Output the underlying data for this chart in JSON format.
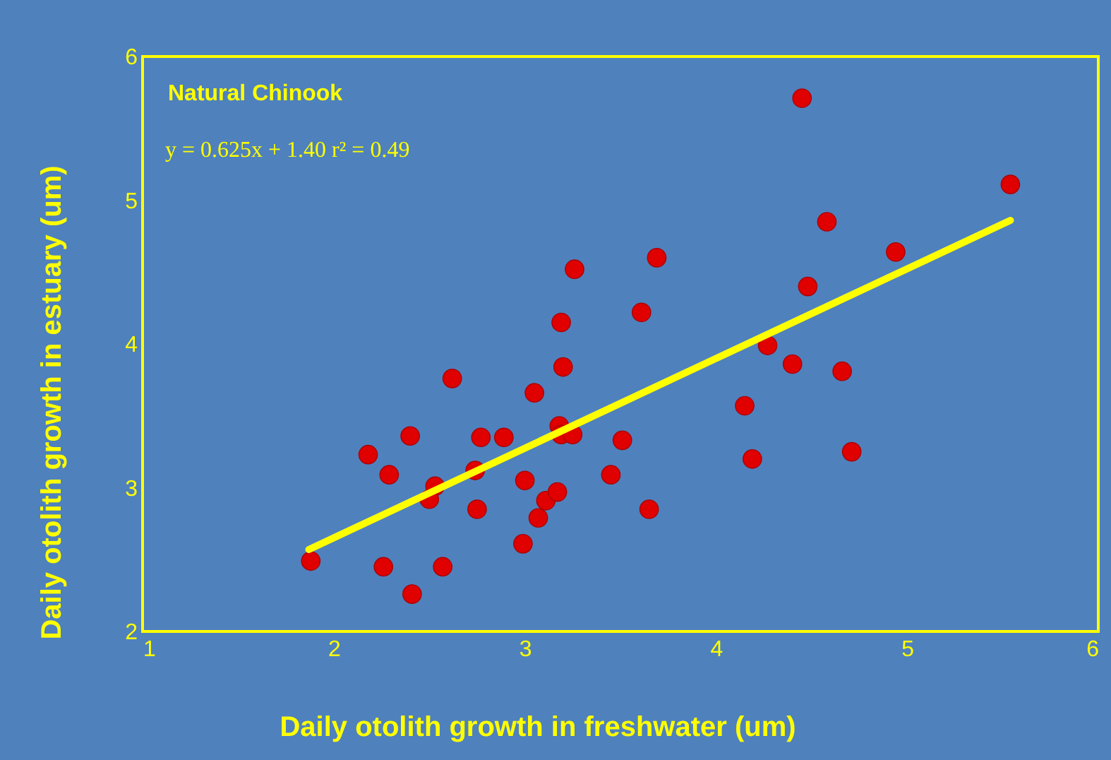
{
  "chart_data": {
    "type": "scatter",
    "title": "Natural Chinook",
    "xlabel": "Daily otolith growth in freshwater (um)",
    "ylabel": "Daily otolith growth in estuary (um)",
    "annotations": [
      "y = 0.625x + 1.40   r² = 0.49"
    ],
    "xlim": [
      1,
      6
    ],
    "xticks": [
      1,
      2,
      3,
      4,
      5,
      6
    ],
    "ylim": [
      2,
      6
    ],
    "yticks": [
      2,
      3,
      4,
      5,
      6
    ],
    "grid": false,
    "marker": "circle",
    "x": [
      1.88,
      2.18,
      2.29,
      2.4,
      2.26,
      2.41,
      2.57,
      2.53,
      2.5,
      2.62,
      2.77,
      2.74,
      2.75,
      2.89,
      2.99,
      3.0,
      3.05,
      3.07,
      3.11,
      3.17,
      3.18,
      3.19,
      3.19,
      3.2,
      3.25,
      3.26,
      3.45,
      3.51,
      3.61,
      3.65,
      3.69,
      4.15,
      4.19,
      4.27,
      4.4,
      4.45,
      4.48,
      4.58,
      4.66,
      4.71,
      4.94,
      5.54
    ],
    "series": [
      {
        "color": "#e00000",
        "values": [
          2.49,
          3.23,
          3.09,
          3.36,
          2.45,
          2.26,
          2.45,
          3.01,
          2.92,
          3.76,
          3.35,
          3.12,
          2.85,
          3.35,
          2.61,
          3.05,
          3.66,
          2.79,
          2.91,
          2.97,
          3.43,
          3.37,
          4.15,
          3.84,
          3.37,
          4.52,
          3.09,
          3.33,
          4.22,
          2.85,
          4.6,
          3.57,
          3.2,
          3.99,
          3.86,
          5.71,
          4.4,
          4.85,
          3.81,
          3.25,
          4.64,
          5.11
        ]
      },
      {
        "type": "line",
        "color": "#ffff00",
        "line_style": "solid",
        "marker": "none",
        "x": [
          1.87,
          5.54
        ],
        "values": [
          2.57,
          4.86
        ]
      }
    ]
  }
}
